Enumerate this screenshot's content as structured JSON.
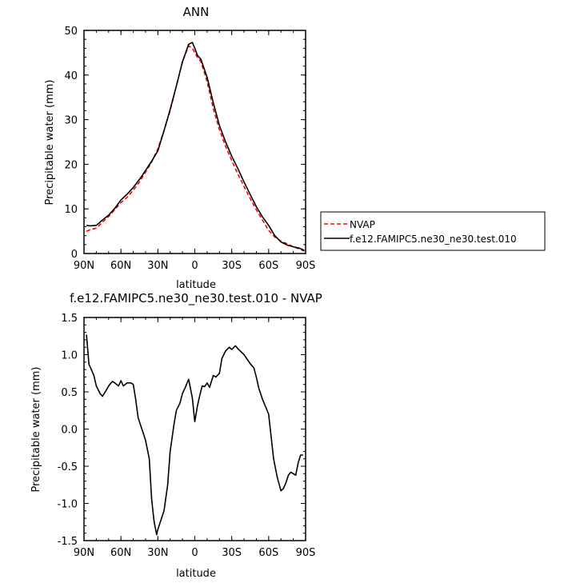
{
  "chart_data": [
    {
      "type": "line",
      "title": "ANN",
      "xlabel": "latitude",
      "ylabel": "Precipitable water (mm)",
      "xlim": [
        90,
        -90
      ],
      "ylim": [
        0,
        50
      ],
      "x_ticks": [
        90,
        60,
        30,
        0,
        -30,
        -60,
        -90
      ],
      "x_tick_labels": [
        "90N",
        "60N",
        "30N",
        "0",
        "30S",
        "60S",
        "90S"
      ],
      "y_ticks": [
        0,
        10,
        20,
        30,
        40,
        50
      ],
      "y_tick_labels": [
        "0",
        "10",
        "20",
        "30",
        "40",
        "50"
      ],
      "legend": "outside-right",
      "series": [
        {
          "name": "NVAP",
          "color": "#ff0000",
          "style": "dashed",
          "x": [
            88,
            85,
            80,
            75,
            70,
            65,
            60,
            55,
            50,
            45,
            40,
            35,
            30,
            25,
            20,
            15,
            10,
            5,
            2,
            0,
            -2,
            -5,
            -10,
            -15,
            -20,
            -25,
            -30,
            -35,
            -40,
            -45,
            -50,
            -55,
            -60,
            -65,
            -70,
            -75,
            -80,
            -85,
            -89
          ],
          "y": [
            5.0,
            5.3,
            5.7,
            7.0,
            8.3,
            9.8,
            11.4,
            12.6,
            14.2,
            16.0,
            18.2,
            20.5,
            23.5,
            27.5,
            32.0,
            37.5,
            43.0,
            46.5,
            46.0,
            45.0,
            44.0,
            43.0,
            38.5,
            32.5,
            27.7,
            24.0,
            20.8,
            17.8,
            15.0,
            12.3,
            9.8,
            7.5,
            5.2,
            3.7,
            2.8,
            2.2,
            1.5,
            1.0,
            0.5
          ]
        },
        {
          "name": "f.e12.FAMIPC5.ne30_ne30.test.010",
          "color": "#000000",
          "style": "solid",
          "x": [
            88,
            85,
            80,
            75,
            70,
            65,
            60,
            55,
            50,
            45,
            40,
            35,
            30,
            25,
            20,
            15,
            10,
            5,
            2,
            0,
            -2,
            -5,
            -10,
            -15,
            -20,
            -25,
            -30,
            -35,
            -40,
            -45,
            -50,
            -55,
            -60,
            -65,
            -70,
            -75,
            -80,
            -85,
            -89
          ],
          "y": [
            6.3,
            6.2,
            6.3,
            7.5,
            8.6,
            10.1,
            12.0,
            13.3,
            14.8,
            16.6,
            18.6,
            20.7,
            23.0,
            27.5,
            32.3,
            37.5,
            43.0,
            46.9,
            47.3,
            46.0,
            44.5,
            43.5,
            39.5,
            33.8,
            28.7,
            25.0,
            21.8,
            19.0,
            16.0,
            13.2,
            10.5,
            8.2,
            6.3,
            4.0,
            2.6,
            1.9,
            1.5,
            1.2,
            0.7
          ]
        }
      ]
    },
    {
      "type": "line",
      "title": "f.e12.FAMIPC5.ne30_ne30.test.010 - NVAP",
      "xlabel": "latitude",
      "ylabel": "Precipitable water (mm)",
      "xlim": [
        90,
        -90
      ],
      "ylim": [
        -1.5,
        1.5
      ],
      "x_ticks": [
        90,
        60,
        30,
        0,
        -30,
        -60,
        -90
      ],
      "x_tick_labels": [
        "90N",
        "60N",
        "30N",
        "0",
        "30S",
        "60S",
        "90S"
      ],
      "y_ticks": [
        -1.5,
        -1.0,
        -0.5,
        0.0,
        0.5,
        1.0,
        1.5
      ],
      "y_tick_labels": [
        "-1.5",
        "-1.0",
        "-0.5",
        "0.0",
        "0.5",
        "1.0",
        "1.5"
      ],
      "series": [
        {
          "color": "#000000",
          "style": "solid",
          "x": [
            88,
            86,
            84,
            82,
            80,
            77,
            75,
            72,
            70,
            67,
            65,
            62,
            60,
            58,
            55,
            52,
            50,
            48,
            46,
            44,
            42,
            40,
            37,
            35,
            33,
            31,
            30,
            28,
            25,
            22,
            20,
            17,
            15,
            12,
            10,
            8,
            5,
            2,
            0,
            -2,
            -4,
            -6,
            -8,
            -10,
            -12,
            -15,
            -17,
            -20,
            -22,
            -25,
            -28,
            -30,
            -33,
            -35,
            -37,
            -40,
            -42,
            -45,
            -48,
            -50,
            -52,
            -55,
            -58,
            -60,
            -62,
            -64,
            -67,
            -70,
            -72,
            -74,
            -76,
            -78,
            -80,
            -82,
            -84,
            -86,
            -88
          ],
          "y": [
            1.27,
            0.87,
            0.8,
            0.72,
            0.58,
            0.48,
            0.44,
            0.52,
            0.58,
            0.64,
            0.62,
            0.58,
            0.65,
            0.58,
            0.62,
            0.62,
            0.6,
            0.4,
            0.15,
            0.05,
            -0.05,
            -0.15,
            -0.4,
            -0.95,
            -1.25,
            -1.42,
            -1.35,
            -1.25,
            -1.1,
            -0.75,
            -0.3,
            0.05,
            0.25,
            0.35,
            0.48,
            0.55,
            0.67,
            0.42,
            0.1,
            0.3,
            0.45,
            0.58,
            0.57,
            0.62,
            0.56,
            0.72,
            0.7,
            0.75,
            0.95,
            1.05,
            1.1,
            1.07,
            1.12,
            1.08,
            1.05,
            1.0,
            0.95,
            0.88,
            0.82,
            0.7,
            0.55,
            0.4,
            0.28,
            0.2,
            -0.1,
            -0.4,
            -0.65,
            -0.83,
            -0.8,
            -0.72,
            -0.62,
            -0.58,
            -0.6,
            -0.62,
            -0.45,
            -0.35,
            -0.35
          ]
        }
      ]
    }
  ]
}
